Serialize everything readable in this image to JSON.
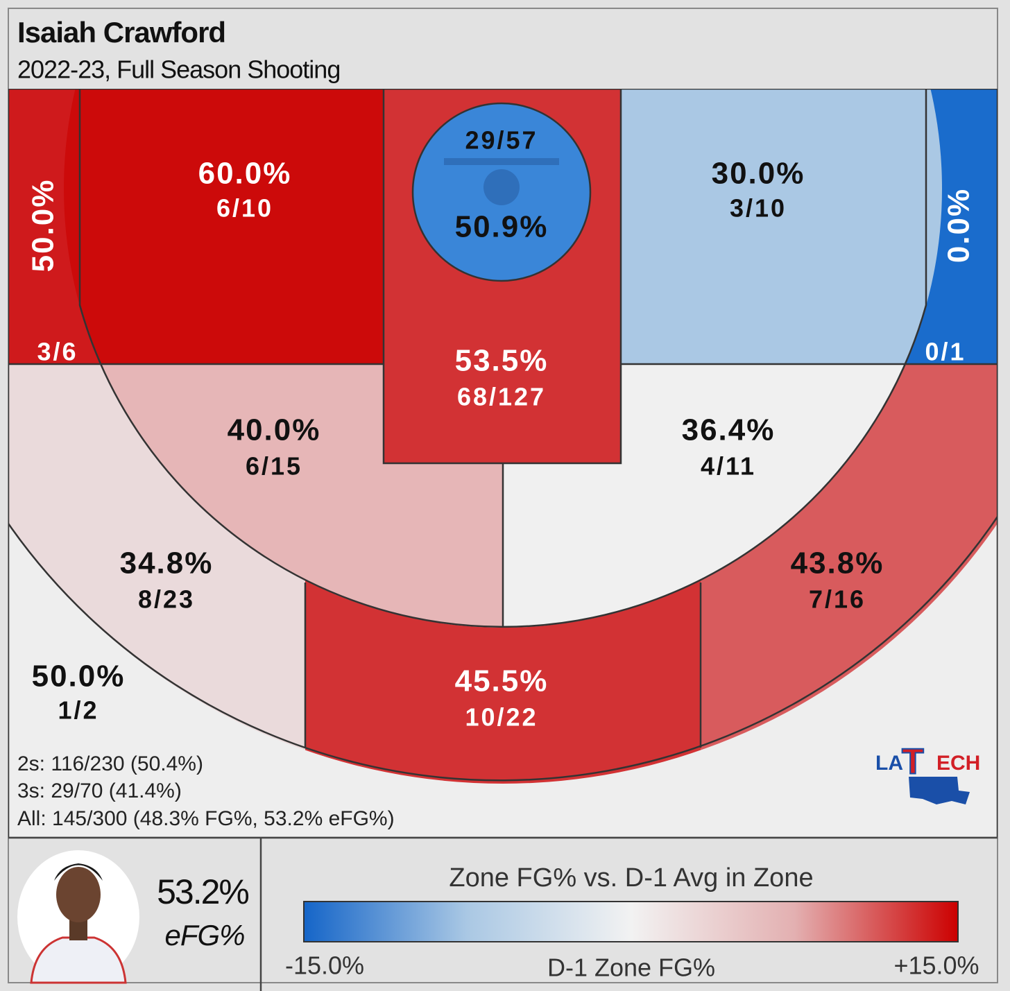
{
  "header": {
    "title": "Isaiah Crawford",
    "subtitle": "2022-23, Full Season Shooting"
  },
  "zones": [
    {
      "pct": "50.0%",
      "shots": "3/6",
      "color": "#cf1a1c",
      "text_color": "#ffffff"
    },
    {
      "pct": "60.0%",
      "shots": "6/10",
      "color": "#cc0a0a",
      "text_color": "#ffffff"
    },
    {
      "pct": "53.5%",
      "shots": "68/127",
      "color": "#d23234",
      "text_color": "#ffffff"
    },
    {
      "pct": "50.9%",
      "shots": "29/57",
      "color": "#3a86d8",
      "text_color": "#111111"
    },
    {
      "pct": "30.0%",
      "shots": "3/10",
      "color": "#aac8e4",
      "text_color": "#111111"
    },
    {
      "pct": "0.0%",
      "shots": "0/1",
      "color": "#1a6ccc",
      "text_color": "#ffffff"
    },
    {
      "pct": "40.0%",
      "shots": "6/15",
      "color": "#e6b6b7",
      "text_color": "#111111"
    },
    {
      "pct": "36.4%",
      "shots": "4/11",
      "color": "#f0f0f0",
      "text_color": "#111111"
    },
    {
      "pct": "34.8%",
      "shots": "8/23",
      "color": "#eadadb",
      "text_color": "#111111"
    },
    {
      "pct": "45.5%",
      "shots": "10/22",
      "color": "#d23234",
      "text_color": "#ffffff"
    },
    {
      "pct": "43.8%",
      "shots": "7/16",
      "color": "#d85b5d",
      "text_color": "#111111"
    },
    {
      "pct": "50.0%",
      "shots": "1/2",
      "color": "#eeeeee",
      "text_color": "#111111"
    }
  ],
  "summary": [
    "2s: 116/230 (50.4%)",
    "3s: 29/70 (41.4%)",
    "All: 145/300 (48.3% FG%, 53.2% eFG%)"
  ],
  "player": {
    "efg": "53.2%",
    "efg_label": "eFG%"
  },
  "logo": {
    "left": "LA",
    "mid": "T",
    "right": "ECH"
  },
  "legend": {
    "title": "Zone FG% vs. D-1 Avg in Zone",
    "min": "-15.0%",
    "mid": "D-1 Zone FG%",
    "max": "+15.0%",
    "colors": [
      "#1565c8",
      "#aac8e4",
      "#f2f2f2",
      "#e3b0b1",
      "#cc0000"
    ]
  }
}
